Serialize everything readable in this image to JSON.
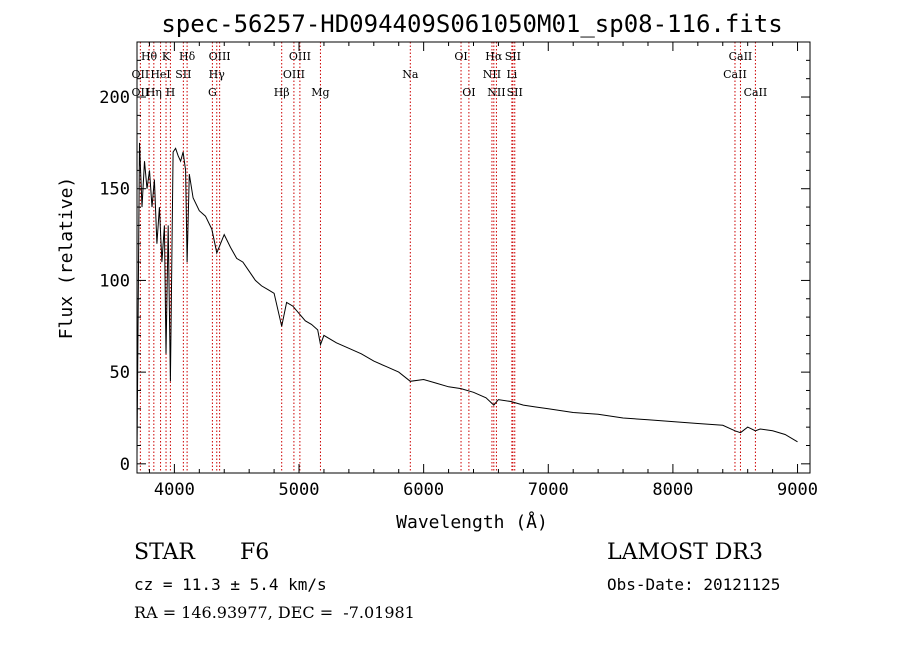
{
  "chart_data": {
    "type": "line",
    "title": "spec-56257-HD094409S061050M01_sp08-116.fits",
    "xlabel": "Wavelength (Å)",
    "ylabel": "Flux (relative)",
    "xlim": [
      3700,
      9100
    ],
    "ylim": [
      -5,
      230
    ],
    "xticks": [
      4000,
      5000,
      6000,
      7000,
      8000,
      9000
    ],
    "yticks": [
      0,
      50,
      100,
      150,
      200
    ],
    "series": [
      {
        "name": "flux",
        "color": "#000000",
        "x": [
          3700,
          3720,
          3740,
          3760,
          3780,
          3800,
          3820,
          3840,
          3860,
          3880,
          3900,
          3920,
          3933,
          3950,
          3968,
          3990,
          4010,
          4030,
          4050,
          4070,
          4090,
          4102,
          4120,
          4150,
          4200,
          4250,
          4300,
          4340,
          4400,
          4450,
          4500,
          4550,
          4600,
          4650,
          4700,
          4750,
          4800,
          4861,
          4900,
          4950,
          5000,
          5050,
          5100,
          5150,
          5172,
          5200,
          5300,
          5400,
          5500,
          5600,
          5700,
          5800,
          5893,
          6000,
          6100,
          6200,
          6300,
          6400,
          6500,
          6563,
          6600,
          6700,
          6800,
          6900,
          7000,
          7200,
          7400,
          7600,
          7800,
          8000,
          8200,
          8400,
          8498,
          8542,
          8600,
          8662,
          8700,
          8800,
          8900,
          9000
        ],
        "y": [
          5,
          175,
          140,
          165,
          150,
          160,
          140,
          155,
          120,
          140,
          110,
          130,
          60,
          130,
          45,
          170,
          172,
          168,
          165,
          170,
          160,
          110,
          158,
          145,
          138,
          135,
          128,
          115,
          125,
          118,
          112,
          110,
          105,
          100,
          97,
          95,
          93,
          75,
          88,
          86,
          82,
          78,
          76,
          73,
          65,
          70,
          66,
          63,
          60,
          56,
          53,
          50,
          45,
          46,
          44,
          42,
          41,
          39,
          36,
          32,
          35,
          34,
          32,
          31,
          30,
          28,
          27,
          25,
          24,
          23,
          22,
          21,
          18,
          17,
          20,
          18,
          19,
          18,
          16,
          12
        ]
      }
    ],
    "line_labels": [
      {
        "text": "Hθ",
        "wavelength": 3797,
        "row": 1
      },
      {
        "text": "K",
        "wavelength": 3933,
        "row": 1
      },
      {
        "text": "Hδ",
        "wavelength": 4102,
        "row": 1
      },
      {
        "text": "OIII",
        "wavelength": 4363,
        "row": 1
      },
      {
        "text": "OIII",
        "wavelength": 5007,
        "row": 1
      },
      {
        "text": "OI",
        "wavelength": 6300,
        "row": 1
      },
      {
        "text": "Hα",
        "wavelength": 6563,
        "row": 1
      },
      {
        "text": "SII",
        "wavelength": 6716,
        "row": 1
      },
      {
        "text": "CaII",
        "wavelength": 8542,
        "row": 1
      },
      {
        "text": "OII",
        "wavelength": 3727,
        "row": 2
      },
      {
        "text": "HeI",
        "wavelength": 3889,
        "row": 2
      },
      {
        "text": "SII",
        "wavelength": 4072,
        "row": 2
      },
      {
        "text": "Hγ",
        "wavelength": 4340,
        "row": 2
      },
      {
        "text": "OIII",
        "wavelength": 4959,
        "row": 2
      },
      {
        "text": "Na",
        "wavelength": 5893,
        "row": 2
      },
      {
        "text": "NII",
        "wavelength": 6548,
        "row": 2
      },
      {
        "text": "Li",
        "wavelength": 6708,
        "row": 2
      },
      {
        "text": "CaII",
        "wavelength": 8498,
        "row": 2
      },
      {
        "text": "OII",
        "wavelength": 3727,
        "row": 3
      },
      {
        "text": "Hη",
        "wavelength": 3835,
        "row": 3
      },
      {
        "text": "H",
        "wavelength": 3968,
        "row": 3
      },
      {
        "text": "G",
        "wavelength": 4305,
        "row": 3
      },
      {
        "text": "Hβ",
        "wavelength": 4861,
        "row": 3
      },
      {
        "text": "Mg",
        "wavelength": 5172,
        "row": 3
      },
      {
        "text": "OI",
        "wavelength": 6363,
        "row": 3
      },
      {
        "text": "NII",
        "wavelength": 6584,
        "row": 3
      },
      {
        "text": "SII",
        "wavelength": 6731,
        "row": 3
      },
      {
        "text": "CaII",
        "wavelength": 8662,
        "row": 3
      }
    ],
    "line_marker_color": "#cc0000"
  },
  "info": {
    "class_label": "STAR",
    "subclass": "F6",
    "survey": "LAMOST DR3",
    "redshift": "cz = 11.3 ± 5.4 km/s",
    "obs_date": "Obs-Date: 20121125",
    "coords": "RA = 146.93977, DEC =  -7.01981"
  }
}
